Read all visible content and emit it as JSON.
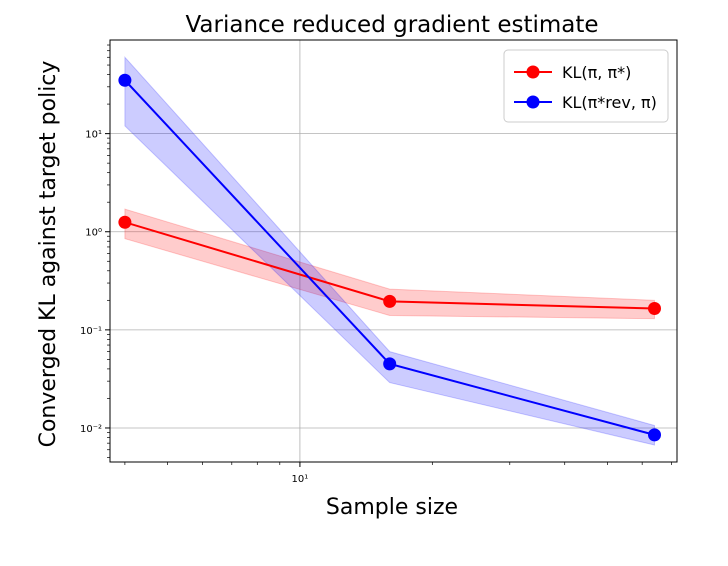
{
  "chart_data": {
    "type": "line",
    "title": "Variance reduced gradient estimate",
    "xlabel": "Sample size",
    "ylabel": "Converged KL against target policy",
    "xscale": "log",
    "yscale": "log",
    "xlim": [
      3.7,
      72
    ],
    "ylim": [
      0.0045,
      90
    ],
    "x": [
      4,
      16,
      64
    ],
    "grid": true,
    "xticks": [
      {
        "value": 10,
        "label": "10¹"
      }
    ],
    "yticks": [
      {
        "value": 0.01,
        "label": "10⁻²"
      },
      {
        "value": 0.1,
        "label": "10⁻¹"
      },
      {
        "value": 1,
        "label": "10⁰"
      },
      {
        "value": 10,
        "label": "10¹"
      }
    ],
    "legend_position": "top-right",
    "series": [
      {
        "name": "KL(π, π*)",
        "color": "#ff0000",
        "band_color": "#ff0000",
        "values": [
          1.25,
          0.195,
          0.165
        ],
        "lower": [
          0.85,
          0.14,
          0.13
        ],
        "upper": [
          1.7,
          0.26,
          0.2
        ]
      },
      {
        "name": "KL(π*rev, π)",
        "color": "#0000ff",
        "band_color": "#0000ff",
        "values": [
          35,
          0.045,
          0.0085
        ],
        "lower": [
          12,
          0.029,
          0.0067
        ],
        "upper": [
          60,
          0.06,
          0.0106
        ]
      }
    ]
  }
}
